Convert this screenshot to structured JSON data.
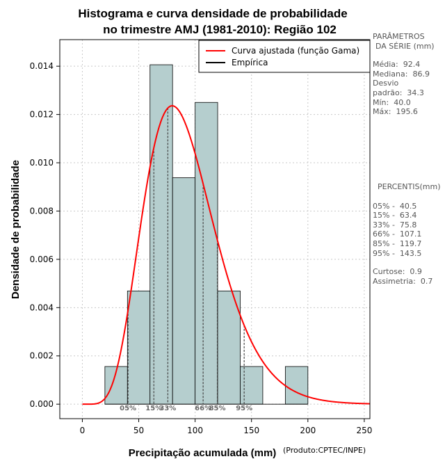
{
  "chart_data": {
    "type": "histogram",
    "title": [
      "Histograma e curva densidade de probabilidade",
      "no trimestre AMJ (1981-2010): Região 102"
    ],
    "xlabel": "Precipitação acumulada (mm)",
    "ylabel": "Densidade de probabilidade",
    "credit": "(Produto:CPTEC/INPE)",
    "xlim": [
      -20,
      255
    ],
    "ylim": [
      -0.0006,
      0.0151
    ],
    "xticks": [
      0,
      50,
      100,
      150,
      200,
      250
    ],
    "yticks": [
      0.0,
      0.002,
      0.004,
      0.006,
      0.008,
      0.01,
      0.012,
      0.014
    ],
    "ytick_labels": [
      "0.000",
      "0.002",
      "0.004",
      "0.006",
      "0.008",
      "0.010",
      "0.012",
      "0.014"
    ],
    "grid": true,
    "legend_position": "top-right",
    "legend": [
      {
        "label": "Curva ajustada (função Gama)",
        "color": "#ff0000"
      },
      {
        "label": "Empírica",
        "color": "#000000"
      }
    ],
    "bins": [
      {
        "start": 20,
        "end": 40,
        "density": 0.00156
      },
      {
        "start": 40,
        "end": 60,
        "density": 0.00469
      },
      {
        "start": 60,
        "end": 80,
        "density": 0.01406
      },
      {
        "start": 80,
        "end": 100,
        "density": 0.00938
      },
      {
        "start": 100,
        "end": 120,
        "density": 0.0125
      },
      {
        "start": 120,
        "end": 140,
        "density": 0.00469
      },
      {
        "start": 140,
        "end": 160,
        "density": 0.00156
      },
      {
        "start": 160,
        "end": 180,
        "density": 0.0
      },
      {
        "start": 180,
        "end": 200,
        "density": 0.00156
      }
    ],
    "bar_color": "#b5cece",
    "curve": {
      "type": "gamma",
      "mean": 92.4,
      "sd": 34.3,
      "color": "#ff0000"
    },
    "percentile_markers": [
      {
        "label": "05%",
        "value": 40.5
      },
      {
        "label": "15%",
        "value": 63.4
      },
      {
        "label": "33%",
        "value": 75.8
      },
      {
        "label": "66%",
        "value": 107.1
      },
      {
        "label": "85%",
        "value": 119.7
      },
      {
        "label": "95%",
        "value": 143.5
      }
    ]
  },
  "stats_panel": {
    "params_header": [
      "PARÂMETROS",
      "DA SÉRIE (mm)"
    ],
    "params": [
      "Média:  92.4",
      "Mediana:  86.9",
      "Desvio",
      "padrão:  34.3",
      "Mín:  40.0",
      "Máx:  195.6"
    ],
    "percentiles_header": "PERCENTIS(mm)",
    "percentiles": [
      "05% -  40.5",
      "15% -  63.4",
      "33% -  75.8",
      "66% -  107.1",
      "85% -  119.7",
      "95% -  143.5"
    ],
    "shape": [
      "Curtose:  0.9",
      "Assimetria:  0.7"
    ]
  }
}
